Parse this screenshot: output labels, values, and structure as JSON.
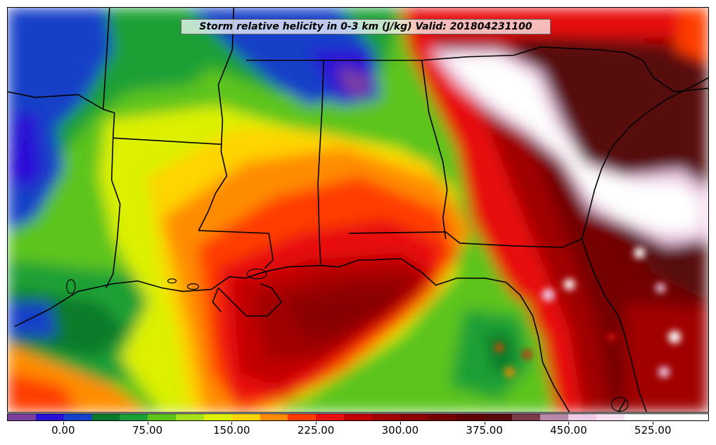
{
  "title": "Storm relative helicity in 0-3 km (J/kg) Valid: 201804231100",
  "colorbar": {
    "min": -50,
    "max": 575,
    "step": 25,
    "colors": [
      "#7b3f9e",
      "#2a0fd6",
      "#1540c8",
      "#0a7a2a",
      "#1aa036",
      "#5cc41a",
      "#a6e01a",
      "#dcf000",
      "#ffd400",
      "#ff8c00",
      "#ff3c00",
      "#e81010",
      "#c00000",
      "#a00000",
      "#8a0000",
      "#740000",
      "#600000",
      "#580a0a",
      "#7a3a4a",
      "#b88aa8",
      "#eecae6",
      "#f8e2f4",
      "#ffffff",
      "#ffffff",
      "#ffffff"
    ],
    "tick_labels": [
      "0.00",
      "75.00",
      "150.00",
      "225.00",
      "300.00",
      "375.00",
      "450.00",
      "525.00"
    ],
    "tick_values": [
      0,
      75,
      150,
      225,
      300,
      375,
      450,
      525
    ]
  }
}
